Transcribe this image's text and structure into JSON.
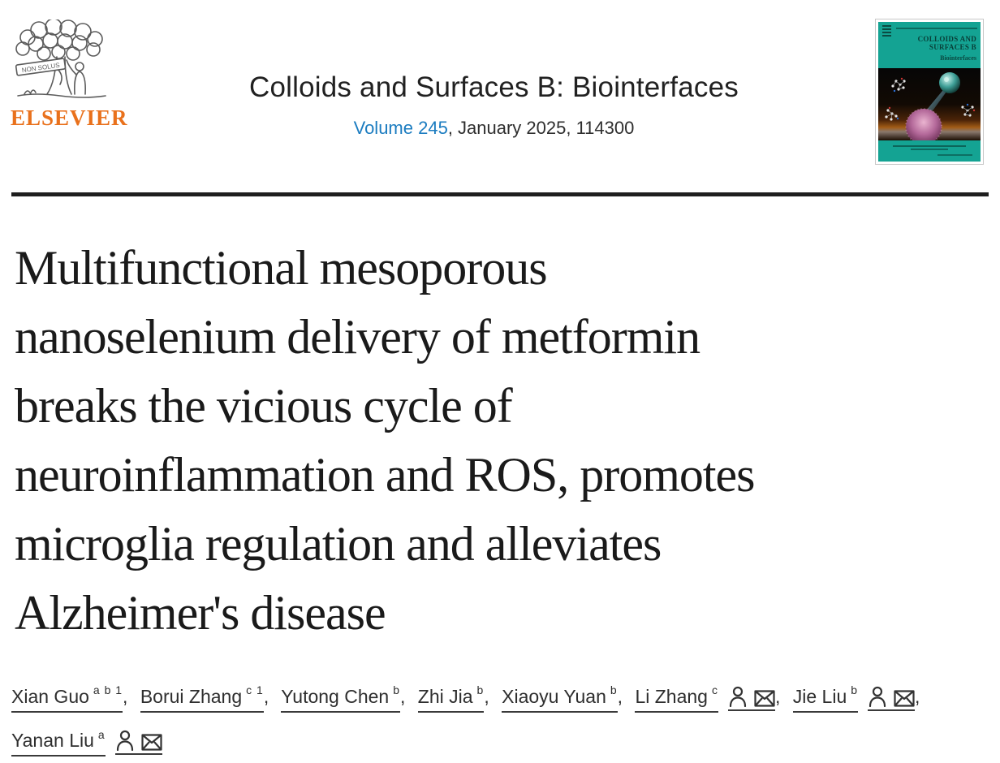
{
  "publisher": {
    "wordmark": "ELSEVIER",
    "motto": "NON SOLUS",
    "brand_color": "#e9711c"
  },
  "journal": {
    "title": "Colloids and Surfaces B: Biointerfaces",
    "volume_link": "Volume 245",
    "issue_info": ", January 2025, 114300",
    "link_color": "#1b7cc0"
  },
  "cover": {
    "title_line1": "COLLOIDS AND",
    "title_line2": "SURFACES B",
    "subtitle": "Biointerfaces",
    "teal_color": "#14a393"
  },
  "article": {
    "title_full": "Multifunctional mesoporous nanoselenium delivery of metformin breaks the vicious cycle of neuroinflammation and ROS, promotes microglia regulation and alleviates Alzheimer's disease",
    "title_lines": [
      "Multifunctional mesoporous",
      "nanoselenium delivery of metformin",
      "breaks the vicious cycle of",
      "neuroinflammation and ROS, promotes",
      "microglia regulation and alleviates",
      "Alzheimer's disease"
    ]
  },
  "authors": [
    {
      "name": "Xian Guo",
      "sup": "a b 1",
      "icons": false,
      "sep": ","
    },
    {
      "name": "Borui Zhang",
      "sup": "c 1",
      "icons": false,
      "sep": ","
    },
    {
      "name": "Yutong Chen",
      "sup": "b",
      "icons": false,
      "sep": ","
    },
    {
      "name": "Zhi Jia",
      "sup": "b",
      "icons": false,
      "sep": ","
    },
    {
      "name": "Xiaoyu Yuan",
      "sup": "b",
      "icons": false,
      "sep": ","
    },
    {
      "name": "Li Zhang",
      "sup": "c",
      "icons": true,
      "sep": ","
    },
    {
      "name": "Jie Liu",
      "sup": "b",
      "icons": true,
      "sep": ","
    },
    {
      "name": "Yanan Liu",
      "sup": "a",
      "icons": true,
      "sep": ""
    }
  ]
}
